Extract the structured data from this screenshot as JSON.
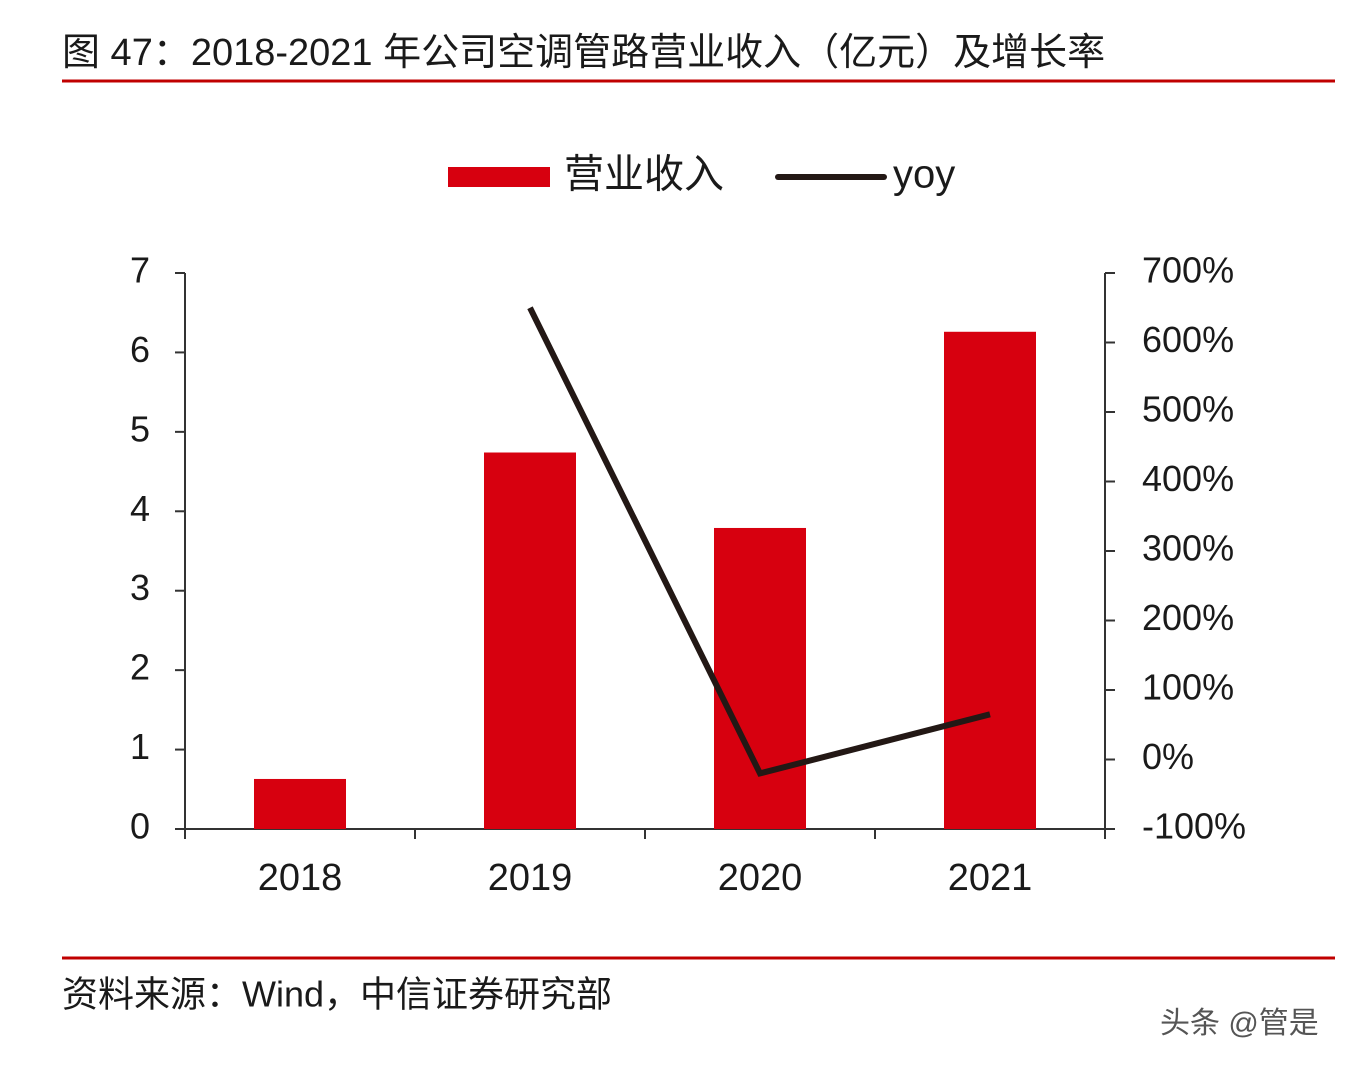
{
  "chart_data": {
    "type": "bar",
    "title": "图 47：2018-2021 年公司空调管路营业收入（亿元）及增长率",
    "source": "资料来源：Wind，中信证券研究部",
    "watermark": "头条 @管是",
    "categories": [
      "2018",
      "2019",
      "2020",
      "2021"
    ],
    "series": [
      {
        "name": "营业收入",
        "type": "bar",
        "color": "#d7000f",
        "values": [
          0.63,
          4.74,
          3.79,
          6.26
        ]
      },
      {
        "name": "yoy",
        "type": "line",
        "color": "#231815",
        "axis": "y2",
        "values": [
          null,
          650,
          -20,
          65
        ]
      }
    ],
    "ylim": [
      0,
      7
    ],
    "yticks": [
      0,
      1,
      2,
      3,
      4,
      5,
      6,
      7
    ],
    "y2lim": [
      -100,
      700
    ],
    "y2ticks": [
      {
        "value": -100,
        "label": "-100%"
      },
      {
        "value": 0,
        "label": "0%"
      },
      {
        "value": 100,
        "label": "100%"
      },
      {
        "value": 200,
        "label": "200%"
      },
      {
        "value": 300,
        "label": "300%"
      },
      {
        "value": 400,
        "label": "400%"
      },
      {
        "value": 500,
        "label": "500%"
      },
      {
        "value": 600,
        "label": "600%"
      },
      {
        "value": 700,
        "label": "700%"
      }
    ],
    "legend": "top",
    "grid": false
  }
}
